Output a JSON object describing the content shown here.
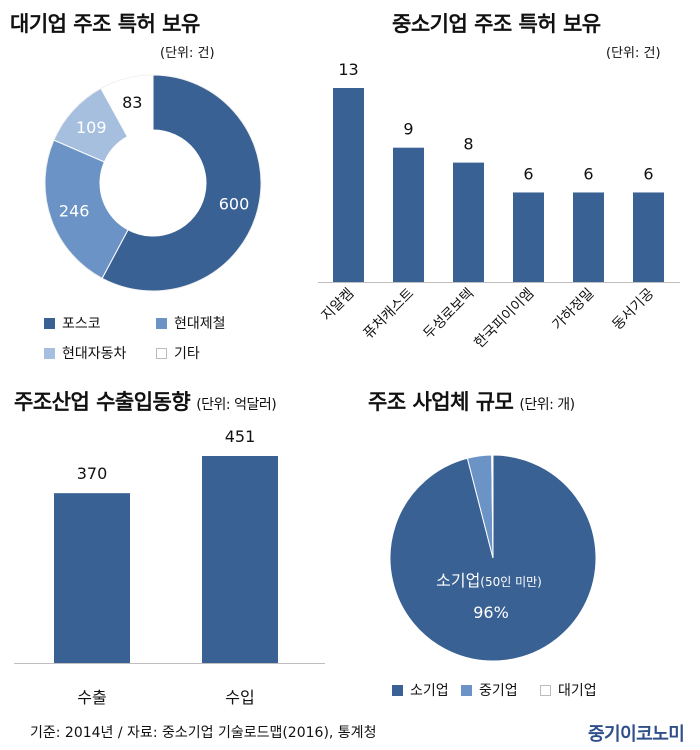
{
  "panels": {
    "large": {
      "title": "대기업 주조 특허 보유",
      "unit": "(단위: 건)"
    },
    "sme": {
      "title": "중소기업 주조 특허 보유",
      "unit": "(단위: 건)"
    },
    "trade": {
      "title": "주조산업 수출입동향",
      "unit": "(단위: 억달러)"
    },
    "scale": {
      "title": "주조 사업체 규모",
      "unit": "(단위: 개)",
      "center_label": "소기업",
      "center_sub": "(50인 미만)",
      "center_value": "96%"
    }
  },
  "colors": {
    "dark": "#3a6193",
    "mid": "#6b93c6",
    "light": "#a7bfdf",
    "white": "#ffffff"
  },
  "chart_data": [
    {
      "type": "pie",
      "subtype": "donut",
      "title": "대기업 주조 특허 보유",
      "unit": "건",
      "labels": [
        "포스코",
        "현대제철",
        "현대자동차",
        "기타"
      ],
      "values": [
        600,
        246,
        109,
        83
      ],
      "colors": [
        "#3a6193",
        "#6b93c6",
        "#a7bfdf",
        "#ffffff"
      ],
      "legend": "bottom"
    },
    {
      "type": "bar",
      "title": "중소기업 주조 특허 보유",
      "unit": "건",
      "categories": [
        "지알켐",
        "퓨처캐스트",
        "두성로보텍",
        "한국피이이엠",
        "가하정밀",
        "동서기공"
      ],
      "values": [
        13,
        9,
        8,
        6,
        6,
        6
      ],
      "color": "#3a6193",
      "ylim": [
        0,
        15
      ]
    },
    {
      "type": "bar",
      "title": "주조산업 수출입동향",
      "unit": "억달러",
      "categories": [
        "수출",
        "수입"
      ],
      "values": [
        370,
        451
      ],
      "color": "#3a6193",
      "ylim": [
        0,
        500
      ]
    },
    {
      "type": "pie",
      "title": "주조 사업체 규모",
      "unit": "개",
      "labels": [
        "소기업",
        "중기업",
        "대기업"
      ],
      "values": [
        96,
        3.8,
        0.2
      ],
      "colors": [
        "#3a6193",
        "#6b93c6",
        "#ffffff"
      ],
      "legend": "bottom"
    }
  ],
  "footer": {
    "source": "기준: 2014년  /  자료: 중소기업 기술로드맵(2016), 통계청",
    "logo": "중기이코노미"
  }
}
